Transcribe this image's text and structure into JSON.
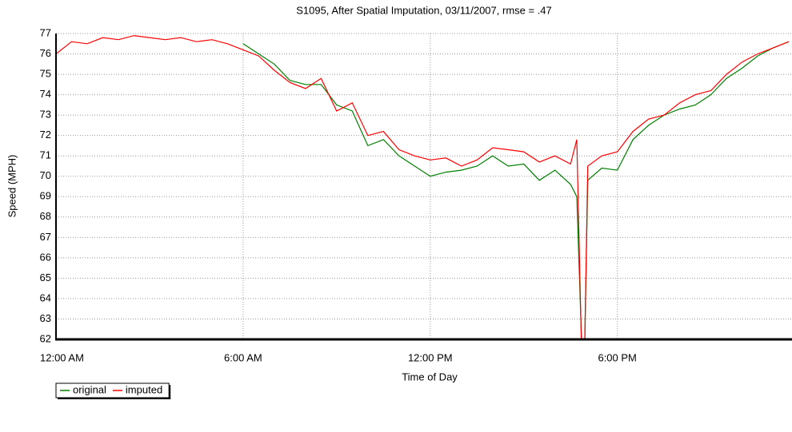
{
  "chart_data": {
    "type": "line",
    "title": "S1095, After Spatial Imputation, 03/11/2007, rmse = .47",
    "x_label": "Time of Day",
    "y_label": "Speed (MPH)",
    "x": [
      0,
      0.5,
      1,
      1.5,
      2,
      2.5,
      3,
      3.5,
      4,
      4.5,
      5,
      5.5,
      6,
      6.5,
      7,
      7.5,
      8,
      8.5,
      9,
      9.5,
      10,
      10.5,
      11,
      11.5,
      12,
      12.5,
      13,
      13.5,
      14,
      14.5,
      15,
      15.5,
      16,
      16.5,
      16.7,
      16.85,
      16.95,
      17.05,
      17.5,
      18,
      18.5,
      19,
      19.5,
      20,
      20.5,
      21,
      21.5,
      22,
      22.5,
      23,
      23.5
    ],
    "series": [
      {
        "name": "original",
        "color": "#008000",
        "values": [
          null,
          null,
          null,
          null,
          null,
          null,
          null,
          null,
          null,
          null,
          null,
          null,
          76.5,
          76.0,
          75.5,
          74.7,
          74.5,
          74.5,
          73.5,
          73.2,
          71.5,
          71.8,
          71.0,
          70.5,
          70.0,
          70.2,
          70.3,
          70.5,
          71.0,
          70.5,
          70.6,
          69.8,
          70.3,
          69.6,
          69.0,
          62.0,
          61.5,
          69.8,
          70.4,
          70.3,
          71.8,
          72.5,
          73.0,
          73.3,
          73.5,
          74.0,
          74.8,
          75.3,
          75.9,
          76.3,
          76.6
        ]
      },
      {
        "name": "imputed",
        "color": "#ff0000",
        "values": [
          76.0,
          76.6,
          76.5,
          76.8,
          76.7,
          76.9,
          76.8,
          76.7,
          76.8,
          76.6,
          76.7,
          76.5,
          76.2,
          75.9,
          75.2,
          74.6,
          74.3,
          74.8,
          73.2,
          73.6,
          72.0,
          72.2,
          71.3,
          71.0,
          70.8,
          70.9,
          70.5,
          70.8,
          71.4,
          71.3,
          71.2,
          70.7,
          71.0,
          70.6,
          71.8,
          61.5,
          61.5,
          70.5,
          71.0,
          71.2,
          72.2,
          72.8,
          73.0,
          73.6,
          74.0,
          74.2,
          75.0,
          75.6,
          76.0,
          76.3,
          76.6
        ]
      }
    ],
    "xlim": [
      0,
      23.6
    ],
    "xticks": [
      {
        "value": 0,
        "label": "12:00 AM"
      },
      {
        "value": 6,
        "label": "6:00 AM"
      },
      {
        "value": 12,
        "label": "12:00 PM"
      },
      {
        "value": 18,
        "label": "6:00 PM"
      }
    ],
    "ylim": [
      62,
      77
    ],
    "yticks": [
      62,
      63,
      64,
      65,
      66,
      67,
      68,
      69,
      70,
      71,
      72,
      73,
      74,
      75,
      76,
      77
    ],
    "grid": true,
    "legend": "bottom-left"
  }
}
